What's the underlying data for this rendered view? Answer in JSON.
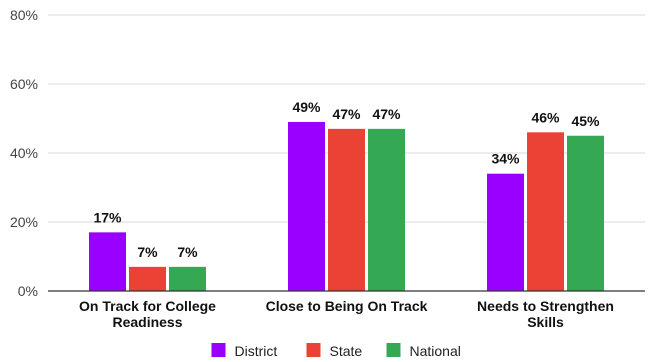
{
  "chart_data": {
    "type": "bar",
    "categories": [
      "On Track for College Readiness",
      "Close to Being On Track",
      "Needs to Strengthen Skills"
    ],
    "category_label_lines": [
      [
        "On Track for College",
        "Readiness"
      ],
      [
        "Close to Being On Track"
      ],
      [
        "Needs to Strengthen",
        "Skills"
      ]
    ],
    "series": [
      {
        "name": "District",
        "color": "#9900ff",
        "values": [
          17,
          49,
          34
        ],
        "labels": [
          "17%",
          "49%",
          "34%"
        ]
      },
      {
        "name": "State",
        "color": "#ea4335",
        "values": [
          7,
          47,
          46
        ],
        "labels": [
          "7%",
          "47%",
          "46%"
        ]
      },
      {
        "name": "National",
        "color": "#34a853",
        "values": [
          7,
          47,
          45
        ],
        "labels": [
          "7%",
          "47%",
          "45%"
        ]
      }
    ],
    "yticks": [
      0,
      20,
      40,
      60,
      80
    ],
    "ytick_labels": [
      "0%",
      "20%",
      "40%",
      "60%",
      "80%"
    ],
    "ylim": [
      0,
      80
    ],
    "grid": true,
    "legend_position": "bottom",
    "colors": {
      "grid": "#d9d9d9",
      "axis": "#333333"
    }
  }
}
